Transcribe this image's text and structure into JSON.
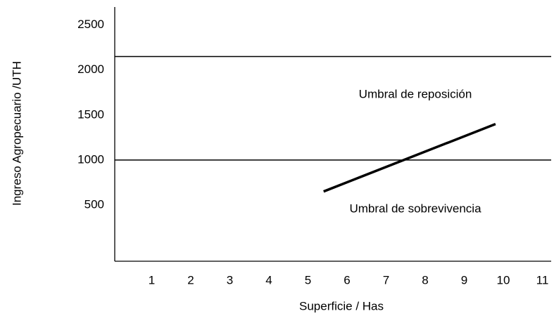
{
  "chart_data": {
    "type": "line",
    "x_label": "Superficie / Has",
    "y_label": "Ingreso Agropecuario /UTH",
    "x": [
      5.4,
      9.8
    ],
    "series": [
      {
        "color": "#000000",
        "values": [
          650,
          1400
        ]
      }
    ],
    "reference_lines": [
      2150,
      1000
    ],
    "annotations": [
      "Umbral de reposición",
      "Umbral de sobrevivencia"
    ],
    "xlim": [
      0,
      11.2
    ],
    "xticks": [
      1,
      2,
      3,
      4,
      5,
      6,
      7,
      8,
      9,
      10,
      11
    ],
    "ylim": [
      -125,
      2700
    ],
    "yticks": [
      500,
      1000,
      1500,
      2000,
      2500
    ],
    "grid": false
  }
}
